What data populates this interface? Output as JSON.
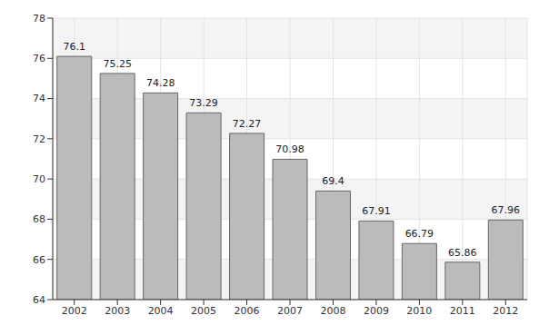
{
  "chart_data": {
    "type": "bar",
    "categories": [
      "2002",
      "2003",
      "2004",
      "2005",
      "2006",
      "2007",
      "2008",
      "2009",
      "2010",
      "2011",
      "2012"
    ],
    "values": [
      76.1,
      75.25,
      74.28,
      73.29,
      72.27,
      70.98,
      69.4,
      67.91,
      66.79,
      65.86,
      67.96
    ],
    "color": "#bbbbbb",
    "ylim": [
      64,
      78
    ],
    "yticks": [
      64,
      66,
      68,
      70,
      72,
      74,
      76,
      78
    ],
    "grid": true,
    "data_labels": true
  }
}
